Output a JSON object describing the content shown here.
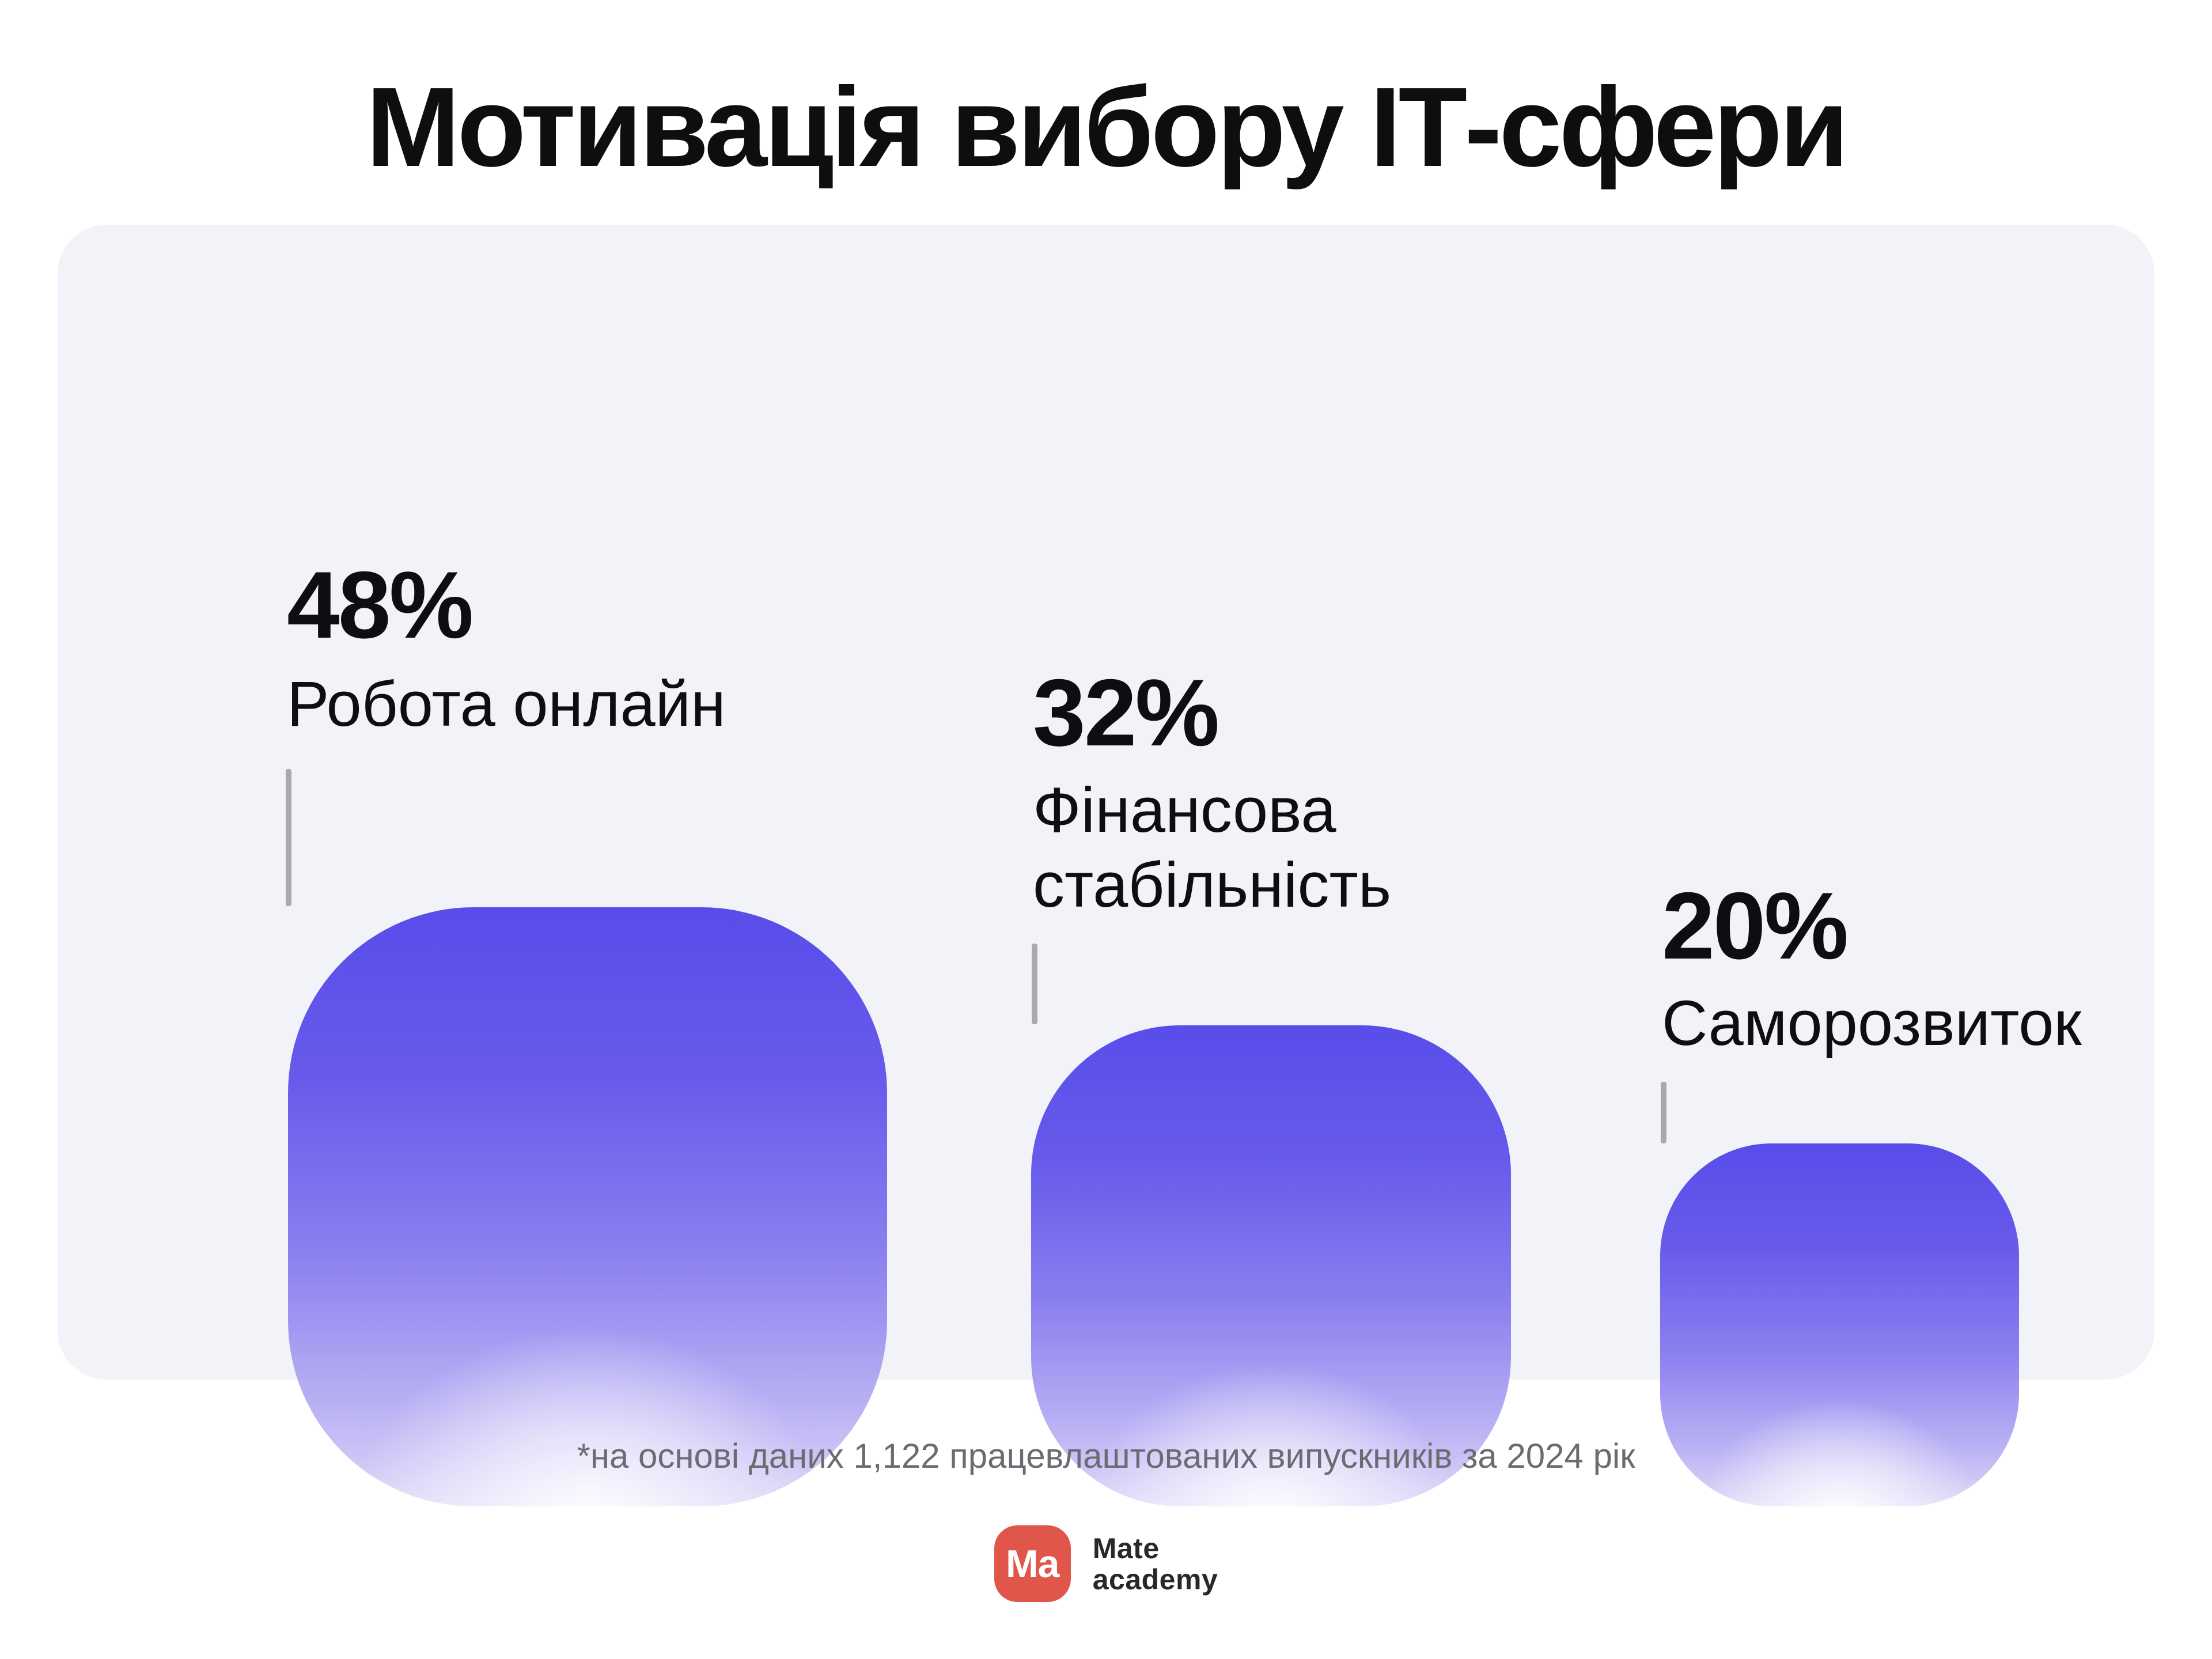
{
  "title": "Мотивація вибору ІТ-сфери",
  "chart_data": {
    "type": "bar",
    "title": "Мотивація вибору ІТ-сфери",
    "categories": [
      "Робота онлайн",
      "Фінансова стабільність",
      "Саморозвиток"
    ],
    "values": [
      48,
      32,
      20
    ],
    "unit": "%",
    "value_labels": [
      "48%",
      "32%",
      "20%"
    ],
    "footnote": "*на основі даних 1,122 працевлаштованих випускників за 2024 рік",
    "legend": false,
    "grid": false,
    "layout_hint": "three rounded-square blobs sized by value, bottoms aligned, labels above each blob"
  },
  "stats": [
    {
      "value": "48%",
      "label": "Робота онлайн"
    },
    {
      "value": "32%",
      "label": "Фінансова стабільність"
    },
    {
      "value": "20%",
      "label": "Саморозвиток"
    }
  ],
  "footnote": "*на основі даних 1,122 працевлаштованих випускників за 2024 рік",
  "logo": {
    "badge": "Ma",
    "name": "Mate academy",
    "name_line1": "Mate",
    "name_line2": "academy"
  },
  "colors": {
    "blob_top": "#584DEA",
    "blob_bottom": "#DDD9F8",
    "panel_bg": "#F2F3F8",
    "logo_red": "#E0564A",
    "tick_gray": "#A9A9AD",
    "text": "#0E0E10",
    "footnote_gray": "#6B6B72"
  }
}
